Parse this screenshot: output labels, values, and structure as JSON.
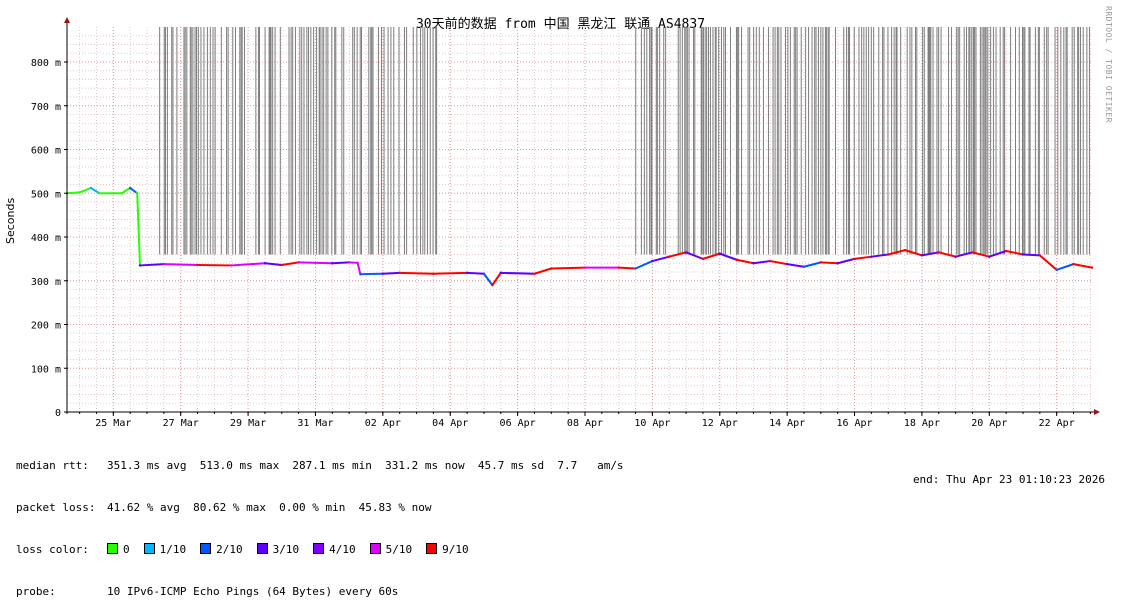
{
  "watermark": "RRDTOOL / TOBI OETIKER",
  "chart_data": {
    "type": "line",
    "title": "30天前的数据 from  中国 黑龙江 联通 AS4837",
    "ylabel": "Seconds",
    "xlabel": "",
    "ylim": [
      0,
      0.88
    ],
    "yticks": [
      {
        "v": 0,
        "label": "0"
      },
      {
        "v": 0.1,
        "label": "100 m"
      },
      {
        "v": 0.2,
        "label": "200 m"
      },
      {
        "v": 0.3,
        "label": "300 m"
      },
      {
        "v": 0.4,
        "label": "400 m"
      },
      {
        "v": 0.5,
        "label": "500 m"
      },
      {
        "v": 0.6,
        "label": "600 m"
      },
      {
        "v": 0.7,
        "label": "700 m"
      },
      {
        "v": 0.8,
        "label": "800 m"
      }
    ],
    "x_start": "2026-03-23T15:00",
    "x_end": "2026-04-23T01:10",
    "xticks": [
      {
        "t": "2026-03-25T00:00",
        "label": "25 Mar"
      },
      {
        "t": "2026-03-27T00:00",
        "label": "27 Mar"
      },
      {
        "t": "2026-03-29T00:00",
        "label": "29 Mar"
      },
      {
        "t": "2026-03-31T00:00",
        "label": "31 Mar"
      },
      {
        "t": "2026-04-02T00:00",
        "label": "02 Apr"
      },
      {
        "t": "2026-04-04T00:00",
        "label": "04 Apr"
      },
      {
        "t": "2026-04-06T00:00",
        "label": "06 Apr"
      },
      {
        "t": "2026-04-08T00:00",
        "label": "08 Apr"
      },
      {
        "t": "2026-04-10T00:00",
        "label": "10 Apr"
      },
      {
        "t": "2026-04-12T00:00",
        "label": "12 Apr"
      },
      {
        "t": "2026-04-14T00:00",
        "label": "14 Apr"
      },
      {
        "t": "2026-04-16T00:00",
        "label": "16 Apr"
      },
      {
        "t": "2026-04-18T00:00",
        "label": "18 Apr"
      },
      {
        "t": "2026-04-20T00:00",
        "label": "20 Apr"
      },
      {
        "t": "2026-04-22T00:00",
        "label": "22 Apr"
      }
    ],
    "grid": true,
    "series": [
      {
        "name": "median rtt",
        "color_by_loss": true,
        "points": [
          {
            "t": "2026-03-23T15:00",
            "v": 0.5,
            "c": "#26ff00"
          },
          {
            "t": "2026-03-24T00:00",
            "v": 0.502,
            "c": "#26ff00"
          },
          {
            "t": "2026-03-24T08:00",
            "v": 0.512,
            "c": "#00b8ff"
          },
          {
            "t": "2026-03-24T14:00",
            "v": 0.5,
            "c": "#26ff00"
          },
          {
            "t": "2026-03-25T06:00",
            "v": 0.5,
            "c": "#26ff00"
          },
          {
            "t": "2026-03-25T12:00",
            "v": 0.512,
            "c": "#0059ff"
          },
          {
            "t": "2026-03-25T17:00",
            "v": 0.5,
            "c": "#26ff00"
          },
          {
            "t": "2026-03-25T19:00",
            "v": 0.335,
            "c": "#5e00ff"
          },
          {
            "t": "2026-03-26T12:00",
            "v": 0.338,
            "c": "#dd00ff"
          },
          {
            "t": "2026-03-27T12:00",
            "v": 0.336,
            "c": "#ff0000"
          },
          {
            "t": "2026-03-28T12:00",
            "v": 0.335,
            "c": "#dd00ff"
          },
          {
            "t": "2026-03-29T12:00",
            "v": 0.34,
            "c": "#5e00ff"
          },
          {
            "t": "2026-03-30T00:00",
            "v": 0.336,
            "c": "#ff0000"
          },
          {
            "t": "2026-03-30T12:00",
            "v": 0.342,
            "c": "#dd00ff"
          },
          {
            "t": "2026-03-31T12:00",
            "v": 0.34,
            "c": "#5e00ff"
          },
          {
            "t": "2026-04-01T00:00",
            "v": 0.342,
            "c": "#dd00ff"
          },
          {
            "t": "2026-04-01T06:00",
            "v": 0.341,
            "c": "#dd00ff"
          },
          {
            "t": "2026-04-01T08:00",
            "v": 0.315,
            "c": "#0059ff"
          },
          {
            "t": "2026-04-02T00:00",
            "v": 0.316,
            "c": "#5e00ff"
          },
          {
            "t": "2026-04-02T12:00",
            "v": 0.318,
            "c": "#ff0000"
          },
          {
            "t": "2026-04-03T12:00",
            "v": 0.316,
            "c": "#ff0000"
          },
          {
            "t": "2026-04-04T12:00",
            "v": 0.318,
            "c": "#5e00ff"
          },
          {
            "t": "2026-04-05T00:00",
            "v": 0.316,
            "c": "#0059ff"
          },
          {
            "t": "2026-04-05T06:00",
            "v": 0.29,
            "c": "#ff0000"
          },
          {
            "t": "2026-04-05T12:00",
            "v": 0.318,
            "c": "#5e00ff"
          },
          {
            "t": "2026-04-06T12:00",
            "v": 0.316,
            "c": "#ff0000"
          },
          {
            "t": "2026-04-07T00:00",
            "v": 0.328,
            "c": "#ff0000"
          },
          {
            "t": "2026-04-08T00:00",
            "v": 0.33,
            "c": "#dd00ff"
          },
          {
            "t": "2026-04-09T00:00",
            "v": 0.33,
            "c": "#ff0000"
          },
          {
            "t": "2026-04-09T12:00",
            "v": 0.328,
            "c": "#0059ff"
          },
          {
            "t": "2026-04-10T00:00",
            "v": 0.345,
            "c": "#5e00ff"
          },
          {
            "t": "2026-04-10T12:00",
            "v": 0.355,
            "c": "#ff0000"
          },
          {
            "t": "2026-04-11T00:00",
            "v": 0.365,
            "c": "#5e00ff"
          },
          {
            "t": "2026-04-11T12:00",
            "v": 0.35,
            "c": "#ff0000"
          },
          {
            "t": "2026-04-12T00:00",
            "v": 0.362,
            "c": "#5e00ff"
          },
          {
            "t": "2026-04-12T12:00",
            "v": 0.348,
            "c": "#ff0000"
          },
          {
            "t": "2026-04-13T00:00",
            "v": 0.34,
            "c": "#5e00ff"
          },
          {
            "t": "2026-04-13T12:00",
            "v": 0.345,
            "c": "#ff0000"
          },
          {
            "t": "2026-04-14T00:00",
            "v": 0.338,
            "c": "#5e00ff"
          },
          {
            "t": "2026-04-14T12:00",
            "v": 0.332,
            "c": "#0059ff"
          },
          {
            "t": "2026-04-15T00:00",
            "v": 0.342,
            "c": "#ff0000"
          },
          {
            "t": "2026-04-15T12:00",
            "v": 0.34,
            "c": "#5e00ff"
          },
          {
            "t": "2026-04-16T00:00",
            "v": 0.35,
            "c": "#ff0000"
          },
          {
            "t": "2026-04-16T12:00",
            "v": 0.355,
            "c": "#5e00ff"
          },
          {
            "t": "2026-04-17T00:00",
            "v": 0.36,
            "c": "#ff0000"
          },
          {
            "t": "2026-04-17T12:00",
            "v": 0.37,
            "c": "#ff0000"
          },
          {
            "t": "2026-04-18T00:00",
            "v": 0.358,
            "c": "#5e00ff"
          },
          {
            "t": "2026-04-18T12:00",
            "v": 0.365,
            "c": "#ff0000"
          },
          {
            "t": "2026-04-19T00:00",
            "v": 0.355,
            "c": "#5e00ff"
          },
          {
            "t": "2026-04-19T12:00",
            "v": 0.365,
            "c": "#ff0000"
          },
          {
            "t": "2026-04-20T00:00",
            "v": 0.355,
            "c": "#5e00ff"
          },
          {
            "t": "2026-04-20T12:00",
            "v": 0.368,
            "c": "#ff0000"
          },
          {
            "t": "2026-04-21T00:00",
            "v": 0.36,
            "c": "#5e00ff"
          },
          {
            "t": "2026-04-21T12:00",
            "v": 0.358,
            "c": "#ff0000"
          },
          {
            "t": "2026-04-22T00:00",
            "v": 0.325,
            "c": "#0059ff"
          },
          {
            "t": "2026-04-22T12:00",
            "v": 0.338,
            "c": "#ff0000"
          },
          {
            "t": "2026-04-23T01:10",
            "v": 0.33,
            "c": "#ff0000"
          }
        ]
      }
    ]
  },
  "stats": {
    "median_rtt": {
      "label": "median rtt:",
      "text": "351.3 ms avg  513.0 ms max  287.1 ms min  331.2 ms now  45.7 ms sd  7.7   am/s"
    },
    "packet_loss": {
      "label": "packet loss:",
      "text": "41.62 % avg  80.62 % max  0.00 % min  45.83 % now"
    },
    "loss_color": {
      "label": "loss color:",
      "items": [
        {
          "label": "0",
          "color": "#26ff00"
        },
        {
          "label": "1/10",
          "color": "#00b8ff"
        },
        {
          "label": "2/10",
          "color": "#0059ff"
        },
        {
          "label": "3/10",
          "color": "#5e00ff"
        },
        {
          "label": "4/10",
          "color": "#7e00ff"
        },
        {
          "label": "5/10",
          "color": "#dd00ff"
        },
        {
          "label": "9/10",
          "color": "#ff0000"
        }
      ]
    },
    "probe": {
      "label": "probe:",
      "text": "10 IPv6-ICMP Echo Pings (64 Bytes) every 60s"
    },
    "end": "end: Thu Apr 23 01:10:23 2026"
  }
}
